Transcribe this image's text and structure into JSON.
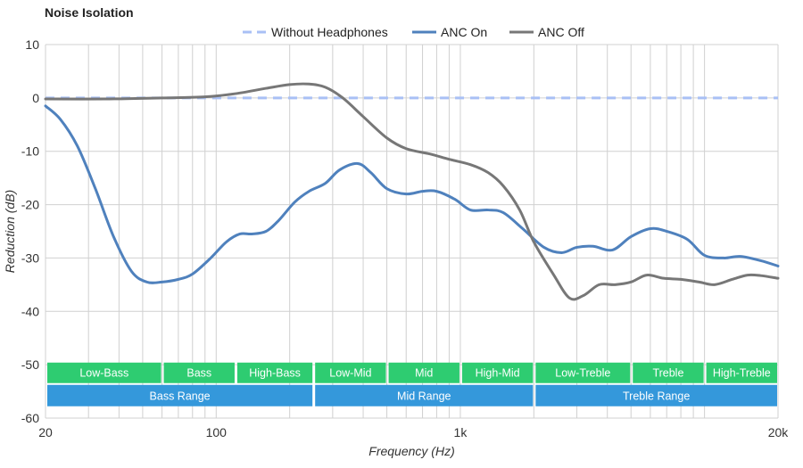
{
  "chart_data": {
    "type": "line",
    "title": "Noise Isolation",
    "xlabel": "Frequency (Hz)",
    "ylabel": "Reduction (dB)",
    "xscale": "log",
    "xlim": [
      20,
      20000
    ],
    "ylim": [
      -60,
      10
    ],
    "grid": true,
    "legend_position": "top-center",
    "x_ticks": [
      {
        "value": 20,
        "label": "20"
      },
      {
        "value": 100,
        "label": "100"
      },
      {
        "value": 1000,
        "label": "1k"
      },
      {
        "value": 20000,
        "label": "20k"
      }
    ],
    "y_ticks": [
      10,
      0,
      -10,
      -20,
      -30,
      -40,
      -50,
      -60
    ],
    "series": [
      {
        "name": "Without Headphones",
        "color": "#a9c0f5",
        "dashed": true,
        "points": [
          [
            20,
            0
          ],
          [
            20000,
            0
          ]
        ]
      },
      {
        "name": "ANC On",
        "color": "#4f81bd",
        "dashed": false,
        "points": [
          [
            20,
            -1.5
          ],
          [
            23,
            -4
          ],
          [
            27,
            -9
          ],
          [
            32,
            -17
          ],
          [
            38,
            -26
          ],
          [
            45,
            -32.5
          ],
          [
            52,
            -34.5
          ],
          [
            60,
            -34.5
          ],
          [
            70,
            -34
          ],
          [
            80,
            -33
          ],
          [
            95,
            -30
          ],
          [
            110,
            -27
          ],
          [
            125,
            -25.5
          ],
          [
            140,
            -25.5
          ],
          [
            160,
            -25
          ],
          [
            180,
            -23
          ],
          [
            210,
            -19.5
          ],
          [
            240,
            -17.5
          ],
          [
            280,
            -16
          ],
          [
            320,
            -13.5
          ],
          [
            380,
            -12.3
          ],
          [
            430,
            -14
          ],
          [
            500,
            -17
          ],
          [
            600,
            -18
          ],
          [
            700,
            -17.5
          ],
          [
            800,
            -17.5
          ],
          [
            950,
            -19
          ],
          [
            1100,
            -21
          ],
          [
            1300,
            -21
          ],
          [
            1500,
            -21.5
          ],
          [
            1800,
            -24.5
          ],
          [
            2200,
            -28
          ],
          [
            2600,
            -29
          ],
          [
            3000,
            -28
          ],
          [
            3500,
            -27.8
          ],
          [
            4200,
            -28.5
          ],
          [
            5000,
            -26
          ],
          [
            6000,
            -24.5
          ],
          [
            7000,
            -25
          ],
          [
            8500,
            -26.5
          ],
          [
            10000,
            -29.5
          ],
          [
            12000,
            -30
          ],
          [
            14000,
            -29.7
          ],
          [
            17000,
            -30.5
          ],
          [
            20000,
            -31.5
          ]
        ]
      },
      {
        "name": "ANC Off",
        "color": "#777777",
        "dashed": false,
        "points": [
          [
            20,
            -0.2
          ],
          [
            35,
            -0.2
          ],
          [
            60,
            0
          ],
          [
            90,
            0.2
          ],
          [
            120,
            0.8
          ],
          [
            160,
            1.8
          ],
          [
            200,
            2.5
          ],
          [
            240,
            2.6
          ],
          [
            280,
            2
          ],
          [
            330,
            0
          ],
          [
            400,
            -3.5
          ],
          [
            500,
            -7.5
          ],
          [
            600,
            -9.5
          ],
          [
            750,
            -10.5
          ],
          [
            900,
            -11.5
          ],
          [
            1100,
            -12.5
          ],
          [
            1300,
            -14
          ],
          [
            1500,
            -16.5
          ],
          [
            1750,
            -21
          ],
          [
            2000,
            -27
          ],
          [
            2400,
            -33
          ],
          [
            2800,
            -37.5
          ],
          [
            3200,
            -37
          ],
          [
            3700,
            -35
          ],
          [
            4300,
            -35
          ],
          [
            5000,
            -34.5
          ],
          [
            5800,
            -33.2
          ],
          [
            6800,
            -33.8
          ],
          [
            8000,
            -34
          ],
          [
            9500,
            -34.5
          ],
          [
            11000,
            -35
          ],
          [
            13000,
            -34
          ],
          [
            15000,
            -33.2
          ],
          [
            17000,
            -33.3
          ],
          [
            20000,
            -33.8
          ]
        ]
      }
    ],
    "range_bands": [
      {
        "label": "Low-Bass",
        "from": 20,
        "to": 60
      },
      {
        "label": "Bass",
        "from": 60,
        "to": 120
      },
      {
        "label": "High-Bass",
        "from": 120,
        "to": 250
      },
      {
        "label": "Low-Mid",
        "from": 250,
        "to": 500
      },
      {
        "label": "Mid",
        "from": 500,
        "to": 1000
      },
      {
        "label": "High-Mid",
        "from": 1000,
        "to": 2000
      },
      {
        "label": "Low-Treble",
        "from": 2000,
        "to": 5000
      },
      {
        "label": "Treble",
        "from": 5000,
        "to": 10000
      },
      {
        "label": "High-Treble",
        "from": 10000,
        "to": 20000
      }
    ],
    "range_groups": [
      {
        "label": "Bass Range",
        "from": 20,
        "to": 250
      },
      {
        "label": "Mid Range",
        "from": 250,
        "to": 2000
      },
      {
        "label": "Treble Range",
        "from": 2000,
        "to": 20000
      }
    ],
    "band_color": "#2ecc71",
    "group_color": "#3498db"
  }
}
